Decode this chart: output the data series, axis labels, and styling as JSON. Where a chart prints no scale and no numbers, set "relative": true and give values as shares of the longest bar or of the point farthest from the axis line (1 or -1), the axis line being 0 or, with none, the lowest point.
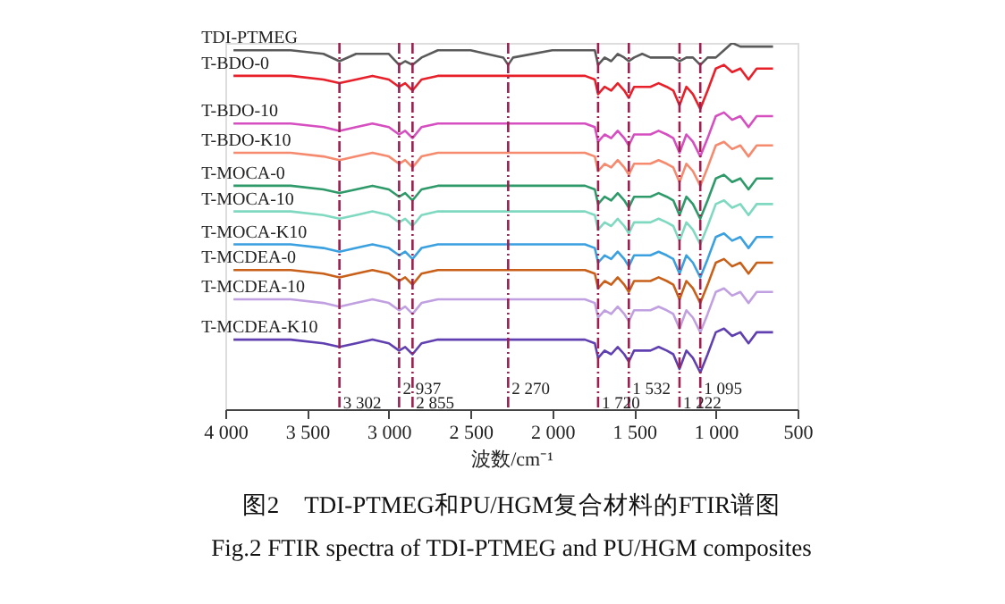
{
  "chart_data": {
    "type": "line",
    "relative": true,
    "xlabel": "波数/cm⁻¹",
    "xlim": [
      4000,
      500
    ],
    "xticks": [
      {
        "value": 4000,
        "label": "4 000"
      },
      {
        "value": 3500,
        "label": "3 500"
      },
      {
        "value": 3000,
        "label": "3 000"
      },
      {
        "value": 2500,
        "label": "2 500"
      },
      {
        "value": 2000,
        "label": "2 000"
      },
      {
        "value": 1500,
        "label": "1 500"
      },
      {
        "value": 1000,
        "label": "1 000"
      },
      500
    ],
    "x": [
      3950,
      3600,
      3400,
      3302,
      3200,
      3100,
      3000,
      2937,
      2900,
      2855,
      2800,
      2700,
      2500,
      2300,
      2270,
      2240,
      2000,
      1800,
      1740,
      1720,
      1680,
      1640,
      1600,
      1560,
      1532,
      1500,
      1450,
      1400,
      1350,
      1300,
      1260,
      1222,
      1180,
      1140,
      1095,
      1050,
      1000,
      950,
      900,
      850,
      800,
      750,
      700,
      650
    ],
    "series": [
      {
        "name": "TDI-PTMEG",
        "color": "#5a5a5a",
        "values": [
          0.98,
          0.98,
          0.97,
          0.95,
          0.97,
          0.97,
          0.97,
          0.94,
          0.95,
          0.94,
          0.96,
          0.98,
          0.98,
          0.96,
          0.94,
          0.96,
          0.98,
          0.98,
          0.98,
          0.94,
          0.96,
          0.95,
          0.97,
          0.96,
          0.95,
          0.96,
          0.97,
          0.96,
          0.96,
          0.96,
          0.96,
          0.95,
          0.96,
          0.96,
          0.94,
          0.96,
          0.96,
          0.98,
          1.0,
          0.99,
          0.99,
          0.99,
          0.99,
          0.99
        ]
      },
      {
        "name": "T-BDO-0",
        "color": "#e8202a",
        "values": [
          0.91,
          0.91,
          0.9,
          0.89,
          0.9,
          0.91,
          0.9,
          0.88,
          0.89,
          0.87,
          0.9,
          0.91,
          0.91,
          0.91,
          0.91,
          0.91,
          0.91,
          0.91,
          0.9,
          0.86,
          0.88,
          0.87,
          0.89,
          0.87,
          0.85,
          0.88,
          0.88,
          0.88,
          0.89,
          0.88,
          0.87,
          0.83,
          0.88,
          0.86,
          0.82,
          0.87,
          0.93,
          0.94,
          0.92,
          0.93,
          0.9,
          0.93,
          0.93,
          0.93
        ]
      },
      {
        "name": "T-BDO-10",
        "color": "#d64fc0",
        "values": [
          0.78,
          0.78,
          0.77,
          0.76,
          0.77,
          0.78,
          0.77,
          0.75,
          0.76,
          0.74,
          0.77,
          0.78,
          0.78,
          0.78,
          0.78,
          0.78,
          0.78,
          0.78,
          0.77,
          0.73,
          0.75,
          0.74,
          0.76,
          0.74,
          0.72,
          0.75,
          0.75,
          0.75,
          0.76,
          0.75,
          0.74,
          0.7,
          0.75,
          0.73,
          0.69,
          0.74,
          0.8,
          0.81,
          0.79,
          0.8,
          0.77,
          0.8,
          0.8,
          0.8
        ]
      },
      {
        "name": "T-BDO-K10",
        "color": "#f58a6e",
        "values": [
          0.7,
          0.7,
          0.69,
          0.68,
          0.69,
          0.7,
          0.69,
          0.67,
          0.68,
          0.66,
          0.69,
          0.7,
          0.7,
          0.7,
          0.7,
          0.7,
          0.7,
          0.7,
          0.69,
          0.65,
          0.67,
          0.66,
          0.68,
          0.66,
          0.64,
          0.67,
          0.67,
          0.67,
          0.68,
          0.67,
          0.66,
          0.62,
          0.67,
          0.65,
          0.61,
          0.66,
          0.72,
          0.73,
          0.71,
          0.72,
          0.69,
          0.72,
          0.72,
          0.72
        ]
      },
      {
        "name": "T-MOCA-0",
        "color": "#2e9a6a",
        "values": [
          0.61,
          0.61,
          0.6,
          0.59,
          0.6,
          0.61,
          0.6,
          0.58,
          0.59,
          0.57,
          0.6,
          0.61,
          0.61,
          0.61,
          0.61,
          0.61,
          0.61,
          0.61,
          0.6,
          0.56,
          0.58,
          0.57,
          0.59,
          0.57,
          0.55,
          0.58,
          0.58,
          0.58,
          0.59,
          0.58,
          0.57,
          0.53,
          0.58,
          0.56,
          0.52,
          0.57,
          0.63,
          0.64,
          0.62,
          0.63,
          0.6,
          0.63,
          0.63,
          0.63
        ]
      },
      {
        "name": "T-MOCA-10",
        "color": "#7fd9c0",
        "values": [
          0.54,
          0.54,
          0.53,
          0.52,
          0.53,
          0.54,
          0.53,
          0.51,
          0.52,
          0.5,
          0.53,
          0.54,
          0.54,
          0.54,
          0.54,
          0.54,
          0.54,
          0.54,
          0.53,
          0.49,
          0.51,
          0.5,
          0.52,
          0.5,
          0.48,
          0.51,
          0.51,
          0.51,
          0.52,
          0.51,
          0.5,
          0.46,
          0.51,
          0.49,
          0.45,
          0.5,
          0.56,
          0.57,
          0.55,
          0.56,
          0.53,
          0.56,
          0.56,
          0.56
        ]
      },
      {
        "name": "T-MOCA-K10",
        "color": "#3aa0e0",
        "values": [
          0.45,
          0.45,
          0.44,
          0.43,
          0.44,
          0.45,
          0.44,
          0.42,
          0.43,
          0.41,
          0.44,
          0.45,
          0.45,
          0.45,
          0.45,
          0.45,
          0.45,
          0.45,
          0.44,
          0.4,
          0.42,
          0.41,
          0.43,
          0.41,
          0.39,
          0.42,
          0.42,
          0.42,
          0.43,
          0.42,
          0.41,
          0.37,
          0.42,
          0.4,
          0.36,
          0.41,
          0.47,
          0.48,
          0.46,
          0.47,
          0.44,
          0.47,
          0.47,
          0.47
        ]
      },
      {
        "name": "T-MCDEA-0",
        "color": "#c8601a",
        "values": [
          0.38,
          0.38,
          0.37,
          0.36,
          0.37,
          0.38,
          0.37,
          0.35,
          0.36,
          0.34,
          0.37,
          0.38,
          0.38,
          0.38,
          0.38,
          0.38,
          0.38,
          0.38,
          0.37,
          0.33,
          0.35,
          0.34,
          0.36,
          0.34,
          0.32,
          0.35,
          0.35,
          0.35,
          0.36,
          0.35,
          0.34,
          0.3,
          0.35,
          0.33,
          0.29,
          0.34,
          0.4,
          0.41,
          0.39,
          0.4,
          0.37,
          0.4,
          0.4,
          0.4
        ]
      },
      {
        "name": "T-MCDEA-10",
        "color": "#c0a0e0",
        "values": [
          0.3,
          0.3,
          0.29,
          0.28,
          0.29,
          0.3,
          0.29,
          0.27,
          0.28,
          0.26,
          0.29,
          0.3,
          0.3,
          0.3,
          0.3,
          0.3,
          0.3,
          0.3,
          0.29,
          0.25,
          0.27,
          0.26,
          0.28,
          0.26,
          0.24,
          0.27,
          0.27,
          0.27,
          0.28,
          0.27,
          0.26,
          0.22,
          0.27,
          0.25,
          0.21,
          0.26,
          0.32,
          0.33,
          0.31,
          0.32,
          0.29,
          0.32,
          0.32,
          0.32
        ]
      },
      {
        "name": "T-MCDEA-K10",
        "color": "#6040b0",
        "values": [
          0.19,
          0.19,
          0.18,
          0.17,
          0.18,
          0.19,
          0.18,
          0.16,
          0.17,
          0.15,
          0.18,
          0.19,
          0.19,
          0.19,
          0.19,
          0.19,
          0.19,
          0.19,
          0.18,
          0.14,
          0.16,
          0.15,
          0.17,
          0.15,
          0.13,
          0.16,
          0.16,
          0.16,
          0.17,
          0.16,
          0.15,
          0.11,
          0.16,
          0.14,
          0.1,
          0.15,
          0.21,
          0.22,
          0.2,
          0.21,
          0.18,
          0.21,
          0.21,
          0.21
        ]
      }
    ],
    "ref_lines": [
      {
        "axis": "x",
        "value": 3302,
        "label": "3 302",
        "color": "#9b2050",
        "line_style": "dashed"
      },
      {
        "axis": "x",
        "value": 2937,
        "label": "2 937",
        "color": "#9b2050",
        "line_style": "dashed"
      },
      {
        "axis": "x",
        "value": 2855,
        "label": "2 855",
        "color": "#9b2050",
        "line_style": "dashed"
      },
      {
        "axis": "x",
        "value": 2270,
        "label": "2 270",
        "color": "#9b2050",
        "line_style": "dashed"
      },
      {
        "axis": "x",
        "value": 1720,
        "label": "1 720",
        "color": "#9b2050",
        "line_style": "dashed"
      },
      {
        "axis": "x",
        "value": 1532,
        "label": "1 532",
        "color": "#9b2050",
        "line_style": "dashed"
      },
      {
        "axis": "x",
        "value": 1222,
        "label": "1 222",
        "color": "#9b2050",
        "line_style": "dashed"
      },
      {
        "axis": "x",
        "value": 1095,
        "label": "1 095",
        "color": "#9b2050",
        "line_style": "dashed"
      }
    ],
    "annotations": [
      "图2　TDI-PTMEG和PU/HGM复合材料的FTIR谱图",
      "Fig.2 FTIR spectra of TDI-PTMEG and PU/HGM composites"
    ]
  }
}
